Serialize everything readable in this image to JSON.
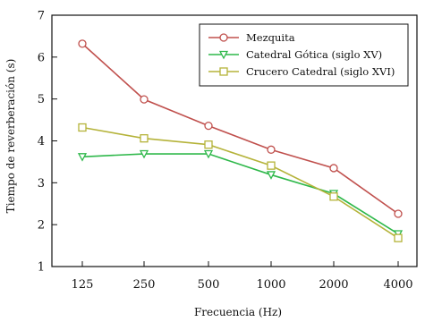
{
  "chart_data": {
    "type": "line",
    "xlabel": "Frecuencia (Hz)",
    "ylabel": "Tiempo de reverberación (s)",
    "categories": [
      "125",
      "250",
      "500",
      "1000",
      "2000",
      "4000"
    ],
    "ylim": [
      1,
      7
    ],
    "yticks": [
      1,
      2,
      3,
      4,
      5,
      6,
      7
    ],
    "grid": false,
    "legend_position": "top-right",
    "series": [
      {
        "name": "Mezquita",
        "color": "#c0504d",
        "marker": "circle",
        "values": [
          6.32,
          4.99,
          4.36,
          3.79,
          3.35,
          2.26
        ]
      },
      {
        "name": "Catedral Gótica (siglo XV)",
        "color": "#2eb84a",
        "marker": "triangle-down",
        "values": [
          3.62,
          3.69,
          3.69,
          3.19,
          2.74,
          1.78
        ]
      },
      {
        "name": "Crucero Catedral (siglo XVI)",
        "color": "#b5b33a",
        "marker": "square",
        "values": [
          4.32,
          4.06,
          3.91,
          3.41,
          2.67,
          1.68
        ]
      }
    ]
  }
}
